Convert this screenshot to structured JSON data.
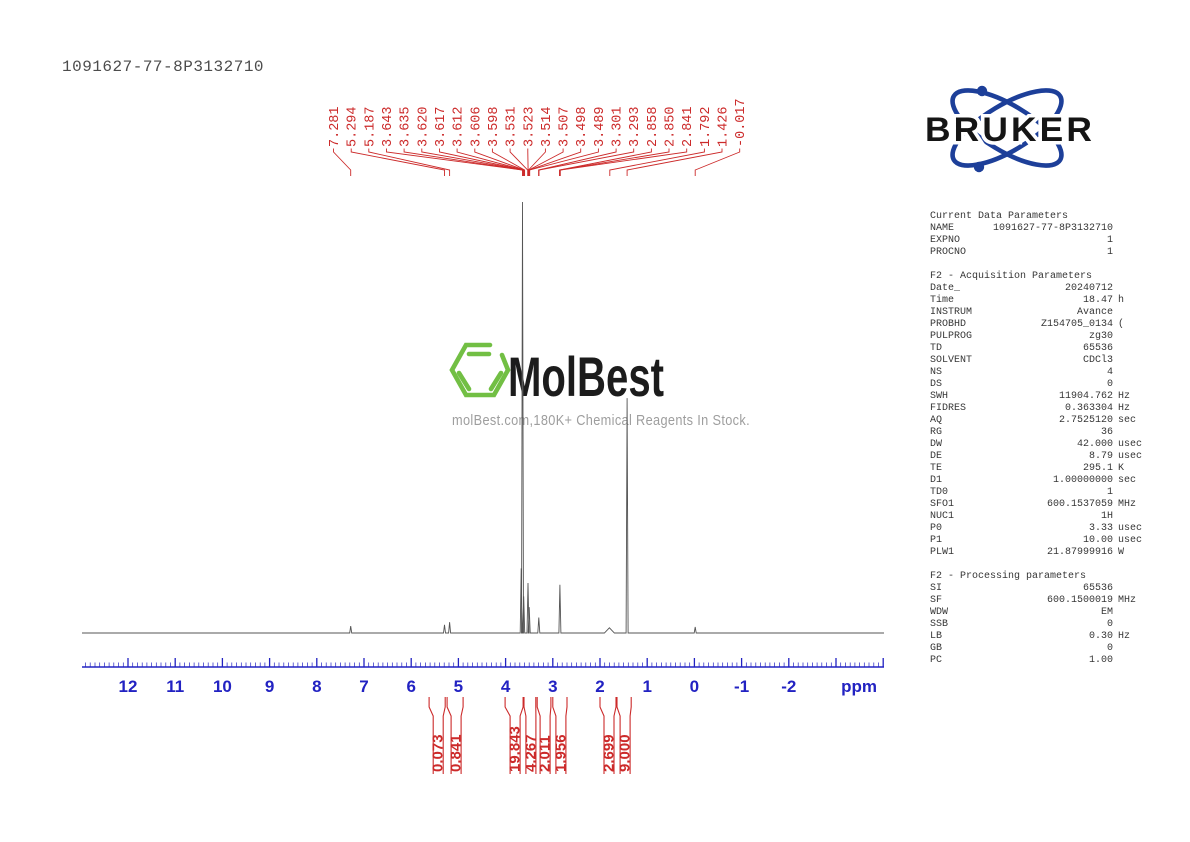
{
  "title": "1091627-77-8P3132710",
  "bruker_logo": {
    "wordmark": "BRUKER"
  },
  "watermark": {
    "brand": "MolBest",
    "tagline": "molBest.com,180K+ Chemical Reagents In Stock."
  },
  "colors": {
    "annotation_red": "#cc2a2a",
    "axis_blue": "#2222c2",
    "trace_gray": "#555555",
    "watermark_green": "#72bf44",
    "watermark_black": "#1c1c1c",
    "tagline_gray": "#9e9e9e",
    "bruker_blue": "#1d3f99",
    "bruker_black": "#151515"
  },
  "chart_data": {
    "type": "line",
    "title": "1H NMR spectrum",
    "x_unit": "ppm",
    "x_axis": {
      "tick_labels": [
        12,
        11,
        10,
        9,
        8,
        7,
        6,
        5,
        4,
        3,
        2,
        1,
        0,
        -1,
        -2
      ],
      "minor_tick_step": 0.1,
      "range": [
        12.95,
        -4.0
      ]
    },
    "peak_labels": [
      "7.281",
      "5.294",
      "5.187",
      "3.643",
      "3.635",
      "3.620",
      "3.617",
      "3.612",
      "3.606",
      "3.598",
      "3.531",
      "3.523",
      "3.514",
      "3.507",
      "3.498",
      "3.489",
      "3.301",
      "3.293",
      "2.858",
      "2.850",
      "2.841",
      "1.792",
      "1.426",
      "-0.017"
    ],
    "peaks": [
      {
        "ppm": 7.281,
        "h": 0.016
      },
      {
        "ppm": 5.294,
        "h": 0.019
      },
      {
        "ppm": 5.187,
        "h": 0.025
      },
      {
        "ppm": 3.67,
        "h": 0.15
      },
      {
        "ppm": 3.643,
        "h": 1.0
      },
      {
        "ppm": 3.617,
        "h": 0.085
      },
      {
        "ppm": 3.525,
        "h": 0.116
      },
      {
        "ppm": 3.5,
        "h": 0.06
      },
      {
        "ppm": 3.297,
        "h": 0.036
      },
      {
        "ppm": 2.85,
        "h": 0.112
      },
      {
        "ppm": 1.8,
        "h": 0.012,
        "w": 5
      },
      {
        "ppm": 1.426,
        "h": 0.545
      },
      {
        "ppm": -0.017,
        "h": 0.014
      }
    ],
    "integrals": [
      {
        "value": "0.073",
        "from_ppm": 5.62,
        "to_ppm": 5.28
      },
      {
        "value": "0.841",
        "from_ppm": 5.24,
        "to_ppm": 4.9
      },
      {
        "value": "19.843",
        "from_ppm": 4.01,
        "to_ppm": 3.63
      },
      {
        "value": "4.267",
        "from_ppm": 3.61,
        "to_ppm": 3.36
      },
      {
        "value": "2.011",
        "from_ppm": 3.33,
        "to_ppm": 3.04
      },
      {
        "value": "1.956",
        "from_ppm": 3.0,
        "to_ppm": 2.7
      },
      {
        "value": "2.699",
        "from_ppm": 2.0,
        "to_ppm": 1.66
      },
      {
        "value": "9.000",
        "from_ppm": 1.64,
        "to_ppm": 1.34
      }
    ]
  },
  "parameters_panel": {
    "sections": [
      {
        "heading": "Current Data Parameters",
        "rows": [
          [
            "NAME",
            "1091627-77-8P3132710",
            ""
          ],
          [
            "EXPNO",
            "1",
            ""
          ],
          [
            "PROCNO",
            "1",
            ""
          ]
        ]
      },
      {
        "heading": "F2 - Acquisition Parameters",
        "rows": [
          [
            "Date_",
            "20240712",
            ""
          ],
          [
            "Time",
            "18.47",
            "h"
          ],
          [
            "INSTRUM",
            "Avance",
            ""
          ],
          [
            "PROBHD",
            "Z154705_0134",
            "("
          ],
          [
            "PULPROG",
            "zg30",
            ""
          ],
          [
            "TD",
            "65536",
            ""
          ],
          [
            "SOLVENT",
            "CDCl3",
            ""
          ],
          [
            "NS",
            "4",
            ""
          ],
          [
            "DS",
            "0",
            ""
          ],
          [
            "SWH",
            "11904.762",
            "Hz"
          ],
          [
            "FIDRES",
            "0.363304",
            "Hz"
          ],
          [
            "AQ",
            "2.7525120",
            "sec"
          ],
          [
            "RG",
            "36",
            ""
          ],
          [
            "DW",
            "42.000",
            "usec"
          ],
          [
            "DE",
            "8.79",
            "usec"
          ],
          [
            "TE",
            "295.1",
            "K"
          ],
          [
            "D1",
            "1.00000000",
            "sec"
          ],
          [
            "TD0",
            "1",
            ""
          ],
          [
            "SFO1",
            "600.1537059",
            "MHz"
          ],
          [
            "NUC1",
            "1H",
            ""
          ],
          [
            "P0",
            "3.33",
            "usec"
          ],
          [
            "P1",
            "10.00",
            "usec"
          ],
          [
            "PLW1",
            "21.87999916",
            "W"
          ]
        ]
      },
      {
        "heading": "F2 - Processing parameters",
        "rows": [
          [
            "SI",
            "65536",
            ""
          ],
          [
            "SF",
            "600.1500019",
            "MHz"
          ],
          [
            "WDW",
            "EM",
            ""
          ],
          [
            "SSB",
            "0",
            ""
          ],
          [
            "LB",
            "0.30",
            "Hz"
          ],
          [
            "GB",
            "0",
            ""
          ],
          [
            "PC",
            "1.00",
            ""
          ]
        ]
      }
    ]
  }
}
